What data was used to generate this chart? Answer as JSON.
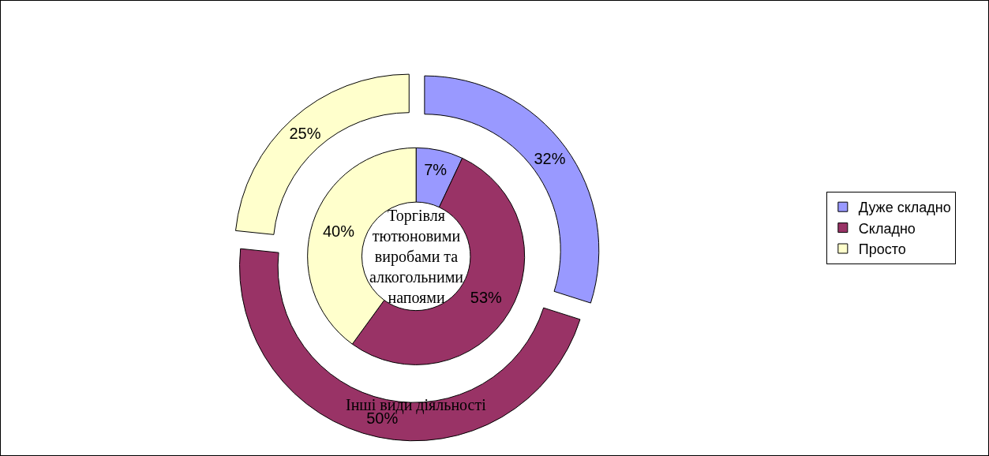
{
  "chart_data": {
    "type": "donut",
    "categories": [
      "Дуже складно",
      "Складно",
      "Просто"
    ],
    "colors": [
      "#9999ff",
      "#993366",
      "#ffffcc"
    ],
    "series": [
      {
        "name": "Торгівля тютюновими виробами та алкогольними напоями",
        "values": [
          7,
          53,
          40
        ],
        "value_labels": [
          "7%",
          "53%",
          "40%"
        ]
      },
      {
        "name": "Інші види діяльності",
        "values": [
          32,
          50,
          25
        ],
        "value_labels": [
          "32%",
          "50%",
          "25%"
        ]
      }
    ],
    "legend": "right"
  }
}
